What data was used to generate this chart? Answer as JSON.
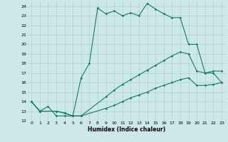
{
  "xlabel": "Humidex (Indice chaleur)",
  "xlim": [
    -0.5,
    23.5
  ],
  "ylim": [
    12,
    24.5
  ],
  "xticks": [
    0,
    1,
    2,
    3,
    4,
    5,
    6,
    7,
    8,
    9,
    10,
    11,
    12,
    13,
    14,
    15,
    16,
    17,
    18,
    19,
    20,
    21,
    22,
    23
  ],
  "yticks": [
    12,
    13,
    14,
    15,
    16,
    17,
    18,
    19,
    20,
    21,
    22,
    23,
    24
  ],
  "bg_color": "#cce8e8",
  "line_color": "#1a7a6a",
  "grid_color": "#b0d0d0",
  "line1_x": [
    0,
    1,
    2,
    3,
    4,
    5,
    6,
    7,
    8,
    9,
    10,
    11,
    12,
    13,
    14,
    15,
    16,
    17,
    18,
    19,
    20,
    21,
    22,
    23
  ],
  "line1_y": [
    14.0,
    13.0,
    13.5,
    12.5,
    12.5,
    12.5,
    16.5,
    18.0,
    23.8,
    23.2,
    23.5,
    23.0,
    23.3,
    23.0,
    24.3,
    23.7,
    23.2,
    22.8,
    22.8,
    20.0,
    20.0,
    17.0,
    17.0,
    16.0
  ],
  "line2_x": [
    0,
    1,
    3,
    4,
    5,
    6,
    9,
    10,
    11,
    12,
    13,
    14,
    15,
    16,
    17,
    18,
    19,
    20,
    21,
    22,
    23
  ],
  "line2_y": [
    14.0,
    13.0,
    13.0,
    12.8,
    12.5,
    12.5,
    14.5,
    15.2,
    15.8,
    16.3,
    16.8,
    17.3,
    17.8,
    18.3,
    18.8,
    19.2,
    19.0,
    17.2,
    17.0,
    17.2,
    17.2
  ],
  "line3_x": [
    0,
    1,
    3,
    4,
    5,
    6,
    9,
    10,
    11,
    12,
    13,
    14,
    15,
    16,
    17,
    18,
    19,
    20,
    21,
    22,
    23
  ],
  "line3_y": [
    14.0,
    13.0,
    13.0,
    12.8,
    12.5,
    12.5,
    13.3,
    13.6,
    14.0,
    14.4,
    14.7,
    15.0,
    15.4,
    15.7,
    16.0,
    16.3,
    16.5,
    15.7,
    15.7,
    15.8,
    16.0
  ]
}
